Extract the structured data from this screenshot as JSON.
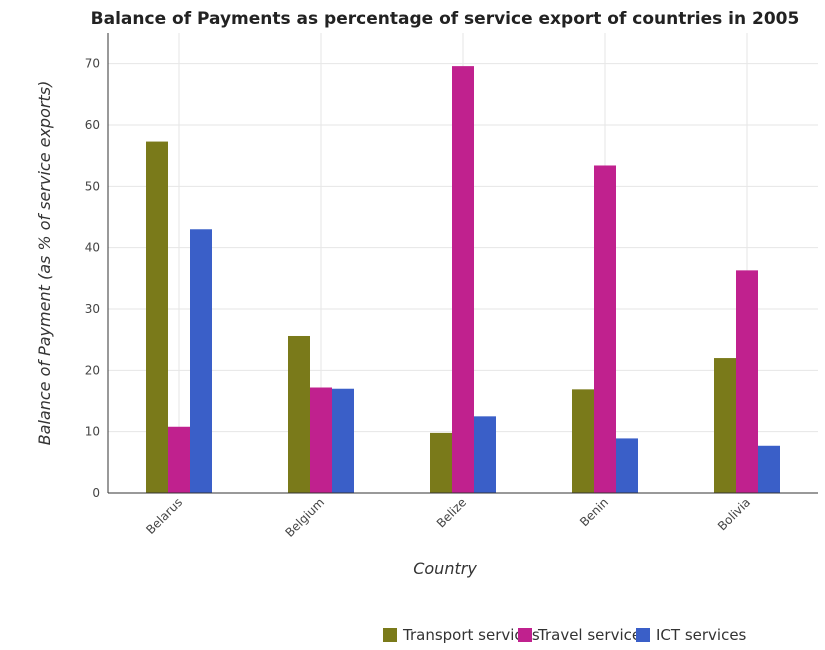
{
  "chart_data": {
    "type": "bar",
    "title": "Balance of Payments as percentage of service export of countries in 2005",
    "xlabel": "Country",
    "ylabel": "Balance of Payment (as % of service exports)",
    "categories": [
      "Belarus",
      "Belgium",
      "Belize",
      "Benin",
      "Bolivia"
    ],
    "ylim": [
      0,
      75
    ],
    "yticks": [
      0,
      10,
      20,
      30,
      40,
      50,
      60,
      70
    ],
    "grid": true,
    "legend_position": "bottom-right",
    "series": [
      {
        "name": "Transport services",
        "color": "#7a7a1a",
        "values": [
          57.3,
          25.6,
          9.8,
          16.9,
          22.0
        ]
      },
      {
        "name": "Travel services",
        "color": "#c0218e",
        "values": [
          10.8,
          17.2,
          69.6,
          53.4,
          36.3
        ]
      },
      {
        "name": "ICT services",
        "color": "#3a5fc8",
        "values": [
          43.0,
          17.0,
          12.5,
          8.9,
          7.7
        ]
      }
    ]
  }
}
